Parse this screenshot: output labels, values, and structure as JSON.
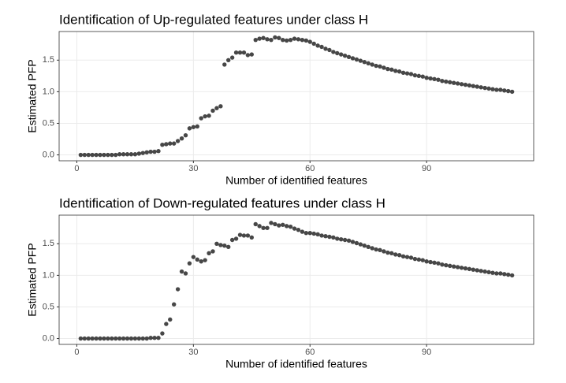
{
  "chart_data": [
    {
      "type": "scatter",
      "title": "Identification of Up-regulated features under class H",
      "xlabel": "Number of identified features",
      "ylabel": "Estimated PFP",
      "x": [
        1,
        2,
        3,
        4,
        5,
        6,
        7,
        8,
        9,
        10,
        11,
        12,
        13,
        14,
        15,
        16,
        17,
        18,
        19,
        20,
        21,
        22,
        23,
        24,
        25,
        26,
        27,
        28,
        29,
        30,
        31,
        32,
        33,
        34,
        35,
        36,
        37,
        38,
        39,
        40,
        41,
        42,
        43,
        44,
        45,
        46,
        47,
        48,
        49,
        50,
        51,
        52,
        53,
        54,
        55,
        56,
        57,
        58,
        59,
        60,
        61,
        62,
        63,
        64,
        65,
        66,
        67,
        68,
        69,
        70,
        71,
        72,
        73,
        74,
        75,
        76,
        77,
        78,
        79,
        80,
        81,
        82,
        83,
        84,
        85,
        86,
        87,
        88,
        89,
        90,
        91,
        92,
        93,
        94,
        95,
        96,
        97,
        98,
        99,
        100,
        101,
        102,
        103,
        104,
        105,
        106,
        107,
        108,
        109,
        110,
        111,
        112
      ],
      "values": [
        0,
        0,
        0,
        0,
        0,
        0,
        0,
        0,
        0,
        0,
        0.01,
        0.01,
        0.01,
        0.01,
        0.01,
        0.02,
        0.03,
        0.04,
        0.05,
        0.05,
        0.06,
        0.16,
        0.17,
        0.18,
        0.18,
        0.22,
        0.26,
        0.31,
        0.42,
        0.44,
        0.45,
        0.58,
        0.61,
        0.62,
        0.7,
        0.74,
        0.77,
        1.43,
        1.5,
        1.54,
        1.62,
        1.62,
        1.62,
        1.58,
        1.59,
        1.82,
        1.84,
        1.85,
        1.83,
        1.82,
        1.86,
        1.85,
        1.82,
        1.81,
        1.82,
        1.84,
        1.83,
        1.82,
        1.81,
        1.79,
        1.76,
        1.73,
        1.71,
        1.68,
        1.66,
        1.63,
        1.61,
        1.59,
        1.57,
        1.55,
        1.53,
        1.51,
        1.49,
        1.47,
        1.45,
        1.43,
        1.41,
        1.4,
        1.38,
        1.36,
        1.35,
        1.33,
        1.32,
        1.3,
        1.29,
        1.28,
        1.26,
        1.25,
        1.24,
        1.22,
        1.21,
        1.2,
        1.19,
        1.17,
        1.16,
        1.15,
        1.14,
        1.13,
        1.12,
        1.11,
        1.1,
        1.09,
        1.08,
        1.07,
        1.06,
        1.05,
        1.04,
        1.03,
        1.03,
        1.02,
        1.01,
        1.0
      ],
      "color": "#333333",
      "xlim": [
        -4.55,
        117.55
      ],
      "xticks": [
        0,
        30,
        60,
        90
      ],
      "ylim": [
        -0.093,
        1.953
      ],
      "yticks": [
        {
          "value": 0,
          "label": "0.0"
        },
        0.5,
        {
          "value": 1,
          "label": "1.0"
        },
        1.5
      ],
      "grid": true
    },
    {
      "type": "scatter",
      "title": "Identification of Down-regulated features under class H",
      "xlabel": "Number of identified features",
      "ylabel": "Estimated PFP",
      "x": [
        1,
        2,
        3,
        4,
        5,
        6,
        7,
        8,
        9,
        10,
        11,
        12,
        13,
        14,
        15,
        16,
        17,
        18,
        19,
        20,
        21,
        22,
        23,
        24,
        25,
        26,
        27,
        28,
        29,
        30,
        31,
        32,
        33,
        34,
        35,
        36,
        37,
        38,
        39,
        40,
        41,
        42,
        43,
        44,
        45,
        46,
        47,
        48,
        49,
        50,
        51,
        52,
        53,
        54,
        55,
        56,
        57,
        58,
        59,
        60,
        61,
        62,
        63,
        64,
        65,
        66,
        67,
        68,
        69,
        70,
        71,
        72,
        73,
        74,
        75,
        76,
        77,
        78,
        79,
        80,
        81,
        82,
        83,
        84,
        85,
        86,
        87,
        88,
        89,
        90,
        91,
        92,
        93,
        94,
        95,
        96,
        97,
        98,
        99,
        100,
        101,
        102,
        103,
        104,
        105,
        106,
        107,
        108,
        109,
        110,
        111,
        112
      ],
      "values": [
        0,
        0,
        0,
        0,
        0,
        0,
        0,
        0,
        0,
        0,
        0,
        0,
        0,
        0,
        0,
        0,
        0,
        0,
        0.01,
        0.01,
        0.01,
        0.08,
        0.23,
        0.3,
        0.54,
        0.78,
        1.06,
        1.03,
        1.19,
        1.29,
        1.25,
        1.22,
        1.24,
        1.35,
        1.38,
        1.5,
        1.48,
        1.47,
        1.45,
        1.56,
        1.58,
        1.64,
        1.63,
        1.63,
        1.6,
        1.81,
        1.78,
        1.75,
        1.75,
        1.83,
        1.81,
        1.79,
        1.8,
        1.78,
        1.77,
        1.74,
        1.72,
        1.69,
        1.67,
        1.67,
        1.66,
        1.65,
        1.63,
        1.62,
        1.61,
        1.6,
        1.58,
        1.57,
        1.56,
        1.55,
        1.53,
        1.51,
        1.49,
        1.47,
        1.45,
        1.43,
        1.41,
        1.4,
        1.38,
        1.36,
        1.35,
        1.33,
        1.32,
        1.3,
        1.29,
        1.28,
        1.26,
        1.25,
        1.24,
        1.22,
        1.21,
        1.2,
        1.19,
        1.17,
        1.16,
        1.15,
        1.14,
        1.13,
        1.12,
        1.11,
        1.1,
        1.09,
        1.08,
        1.07,
        1.06,
        1.05,
        1.04,
        1.03,
        1.03,
        1.02,
        1.01,
        1.0
      ],
      "color": "#333333",
      "xlim": [
        -4.55,
        117.55
      ],
      "xticks": [
        0,
        30,
        60,
        90
      ],
      "ylim": [
        -0.093,
        1.953
      ],
      "yticks": [
        {
          "value": 0,
          "label": "0.0"
        },
        0.5,
        {
          "value": 1,
          "label": "1.0"
        },
        1.5
      ],
      "grid": true
    }
  ]
}
